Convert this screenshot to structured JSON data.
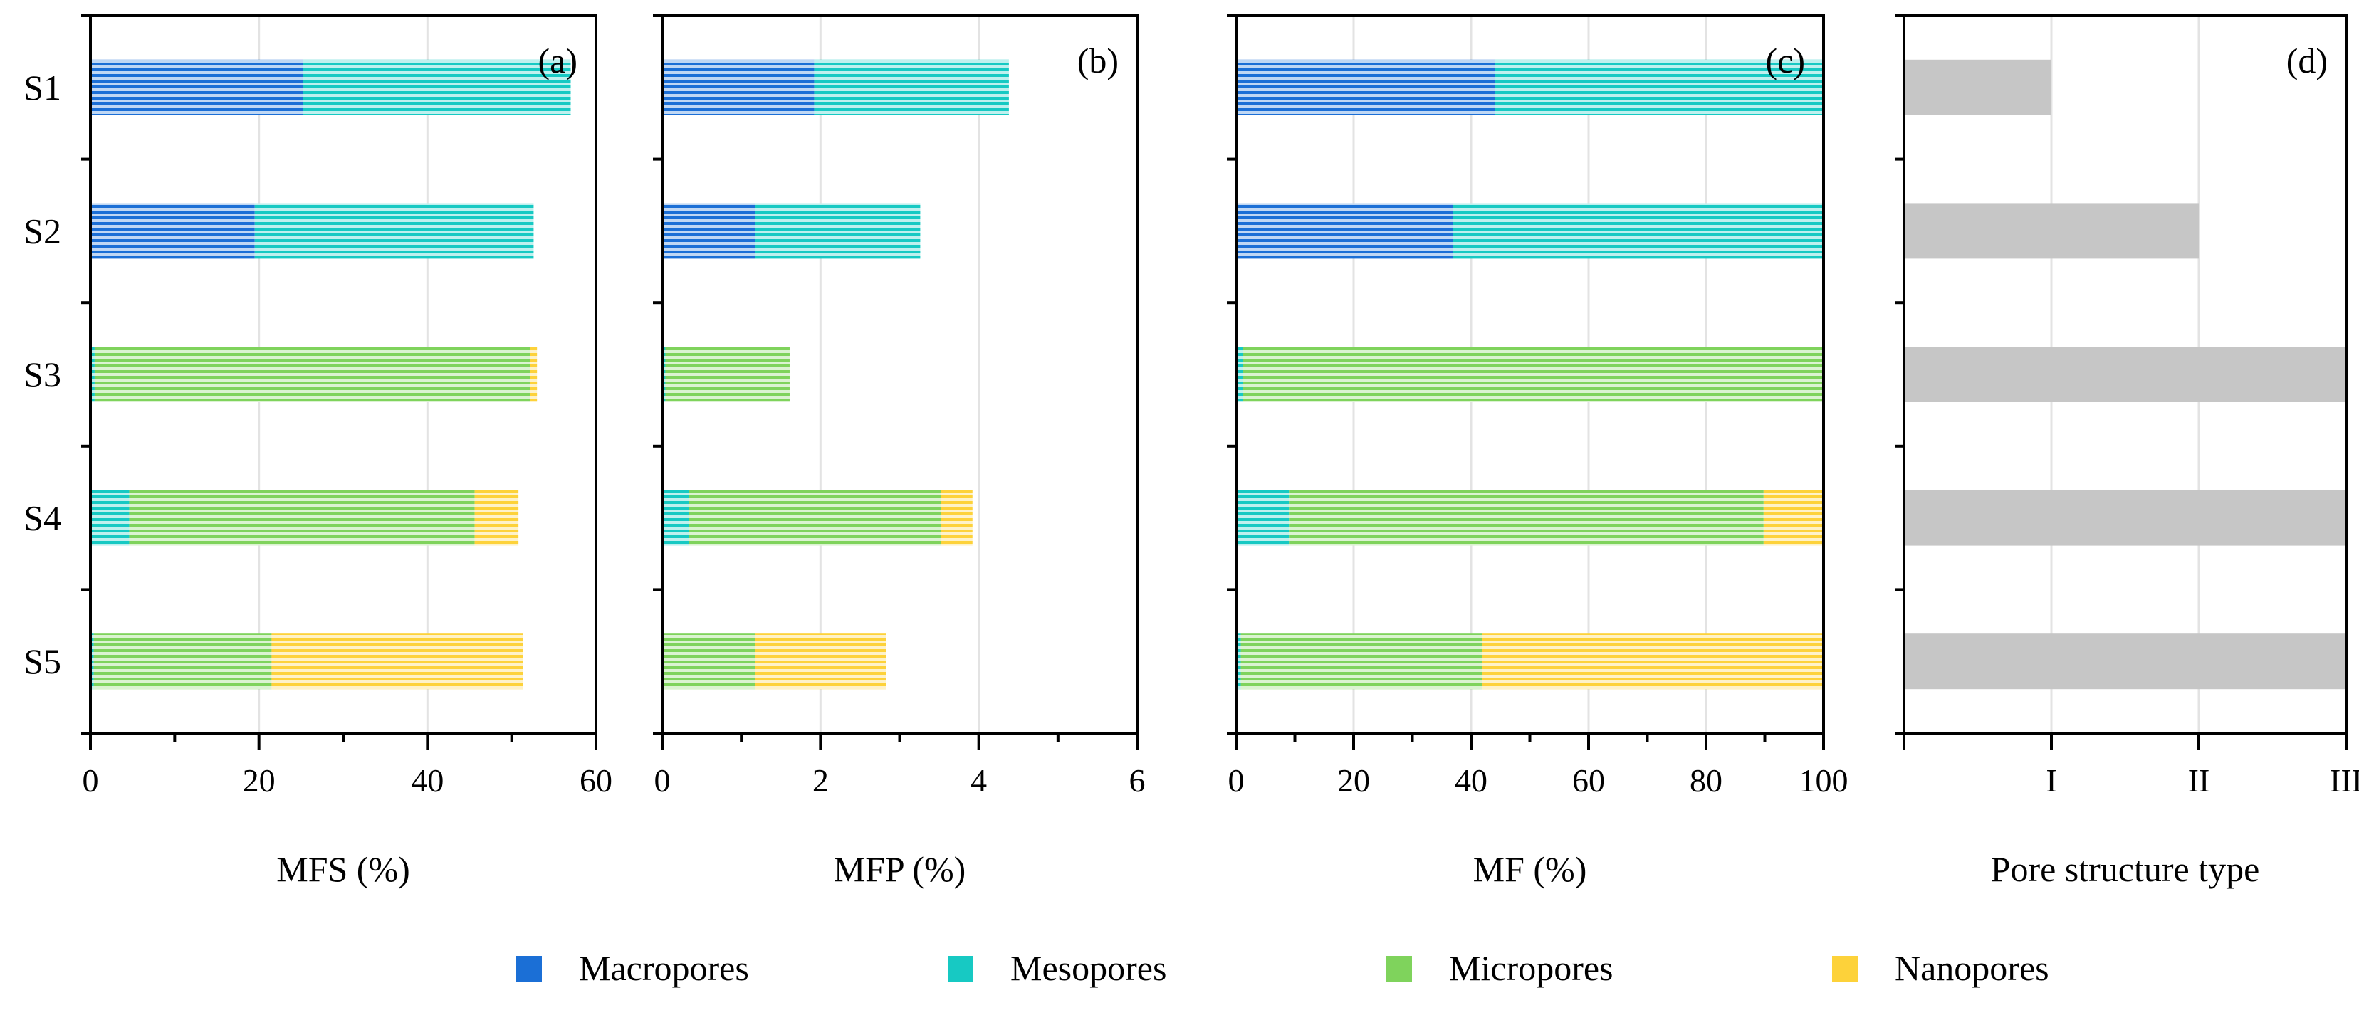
{
  "categories": [
    "S1",
    "S2",
    "S3",
    "S4",
    "S5"
  ],
  "colors": {
    "Macropores": "#1b6fd6",
    "Mesopores": "#17c9c3",
    "Micropores": "#7fd35c",
    "Nanopores": "#fdd23a",
    "pore_type_bar": "#c6c6c6"
  },
  "legend": {
    "items": [
      "Macropores",
      "Mesopores",
      "Micropores",
      "Nanopores"
    ]
  },
  "chart_data": [
    {
      "type": "bar",
      "orientation": "horizontal",
      "stacked": true,
      "panel_label": "(a)",
      "xlabel": "MFS (%)",
      "ylabel": "",
      "xlim": [
        0,
        60
      ],
      "ticks": [
        0,
        20,
        40,
        60
      ],
      "tick_labels": [
        "0",
        "20",
        "40",
        "60"
      ],
      "grid": true,
      "categories": [
        "S1",
        "S2",
        "S3",
        "S4",
        "S5"
      ],
      "series": [
        {
          "name": "Macropores",
          "values": [
            25.2,
            19.5,
            0,
            0,
            0
          ]
        },
        {
          "name": "Mesopores",
          "values": [
            31.8,
            33.1,
            0.5,
            4.6,
            0.4
          ]
        },
        {
          "name": "Micropores",
          "values": [
            0,
            0,
            51.7,
            41.0,
            21.1
          ]
        },
        {
          "name": "Nanopores",
          "values": [
            0,
            0,
            0.8,
            5.2,
            29.8
          ]
        }
      ]
    },
    {
      "type": "bar",
      "orientation": "horizontal",
      "stacked": true,
      "panel_label": "(b)",
      "xlabel": "MFP (%)",
      "ylabel": "",
      "xlim": [
        0,
        6
      ],
      "ticks": [
        0,
        2,
        4,
        6
      ],
      "tick_labels": [
        "0",
        "2",
        "4",
        "6"
      ],
      "grid": true,
      "categories": [
        "S1",
        "S2",
        "S3",
        "S4",
        "S5"
      ],
      "series": [
        {
          "name": "Macropores",
          "values": [
            1.92,
            1.17,
            0,
            0,
            0
          ]
        },
        {
          "name": "Mesopores",
          "values": [
            2.46,
            2.09,
            0.04,
            0.34,
            0.02
          ]
        },
        {
          "name": "Micropores",
          "values": [
            0,
            0,
            1.57,
            3.18,
            1.15
          ]
        },
        {
          "name": "Nanopores",
          "values": [
            0,
            0,
            0,
            0.4,
            1.66
          ]
        }
      ]
    },
    {
      "type": "bar",
      "orientation": "horizontal",
      "stacked": true,
      "panel_label": "(c)",
      "xlabel": "MF (%)",
      "ylabel": "",
      "xlim": [
        0,
        100
      ],
      "ticks": [
        0,
        20,
        40,
        60,
        80,
        100
      ],
      "tick_labels": [
        "0",
        "20",
        "40",
        "60",
        "80",
        "100"
      ],
      "grid": true,
      "categories": [
        "S1",
        "S2",
        "S3",
        "S4",
        "S5"
      ],
      "series": [
        {
          "name": "Macropores",
          "values": [
            44.1,
            36.9,
            0,
            0,
            0
          ]
        },
        {
          "name": "Mesopores",
          "values": [
            55.9,
            63.1,
            1.2,
            9.0,
            0.8
          ]
        },
        {
          "name": "Micropores",
          "values": [
            0,
            0,
            98.8,
            80.8,
            41.1
          ]
        },
        {
          "name": "Nanopores",
          "values": [
            0,
            0,
            0,
            10.2,
            58.1
          ]
        }
      ]
    },
    {
      "type": "bar",
      "orientation": "horizontal",
      "stacked": false,
      "panel_label": "(d)",
      "xlabel": "Pore structure type",
      "ylabel": "",
      "xlim": [
        0,
        3
      ],
      "ticks": [
        1,
        2,
        3
      ],
      "tick_labels": [
        "I",
        "II",
        "III"
      ],
      "grid": true,
      "categories": [
        "S1",
        "S2",
        "S3",
        "S4",
        "S5"
      ],
      "values": [
        1,
        2,
        3,
        3,
        3
      ]
    }
  ]
}
